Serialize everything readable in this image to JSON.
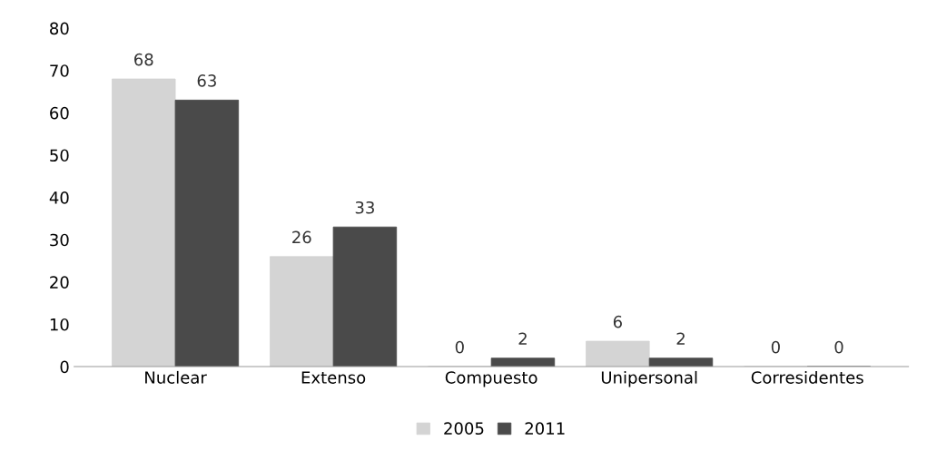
{
  "chart_data": {
    "type": "bar",
    "categories": [
      "Nuclear",
      "Extenso",
      "Compuesto",
      "Unipersonal",
      "Corresidentes"
    ],
    "series": [
      {
        "name": "2005",
        "color": "#d4d4d4",
        "values": [
          68,
          26,
          0,
          6,
          0
        ]
      },
      {
        "name": "2011",
        "color": "#4a4a4a",
        "values": [
          63,
          33,
          2,
          2,
          0
        ]
      }
    ],
    "ylim": [
      0,
      80
    ],
    "yticks": [
      0,
      10,
      20,
      30,
      40,
      50,
      60,
      70,
      80
    ],
    "data_labels": true,
    "legend": "bottom",
    "grid": false
  }
}
